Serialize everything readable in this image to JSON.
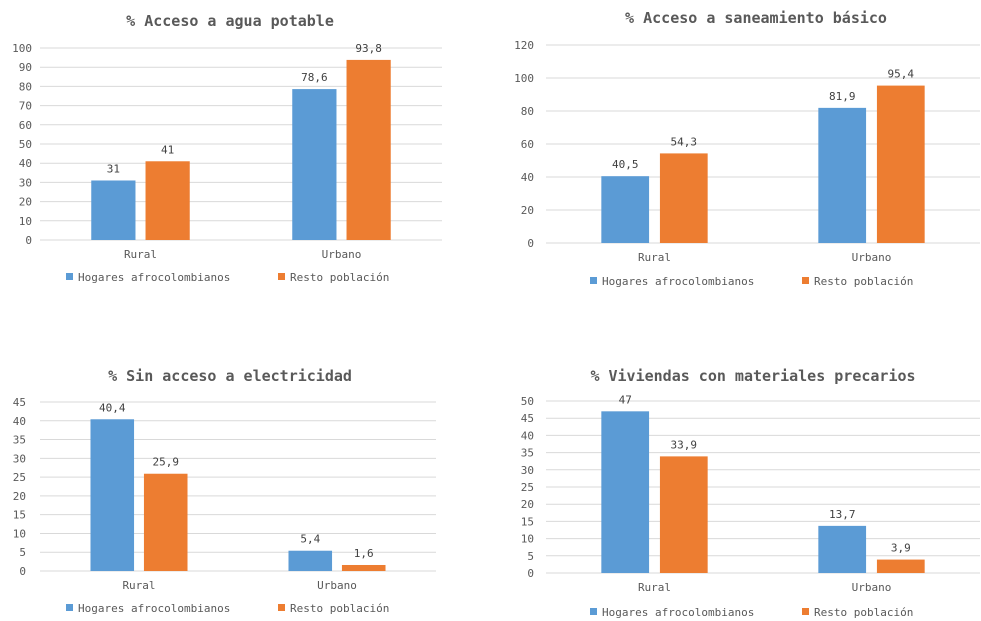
{
  "chart_data": [
    {
      "type": "bar",
      "title": "% Acceso a agua potable",
      "categories": [
        "Rural",
        "Urbano"
      ],
      "series": [
        {
          "name": "Hogares afrocolombianos",
          "color": "#5B9BD5",
          "values": [
            31,
            78.6
          ],
          "labels": [
            "31",
            "78,6"
          ]
        },
        {
          "name": "Resto población",
          "color": "#ED7D31",
          "values": [
            41,
            93.8
          ],
          "labels": [
            "41",
            "93,8"
          ]
        }
      ],
      "ylim": [
        0,
        100
      ],
      "yticks": [
        "0",
        "10",
        "20",
        "30",
        "40",
        "50",
        "60",
        "70",
        "80",
        "90",
        "100"
      ],
      "grid": true,
      "legend": "bottom"
    },
    {
      "type": "bar",
      "title": "% Acceso a saneamiento básico",
      "categories": [
        "Rural",
        "Urbano"
      ],
      "series": [
        {
          "name": "Hogares afrocolombianos",
          "color": "#5B9BD5",
          "values": [
            40.5,
            81.9
          ],
          "labels": [
            "40,5",
            "81,9"
          ]
        },
        {
          "name": "Resto población",
          "color": "#ED7D31",
          "values": [
            54.3,
            95.4
          ],
          "labels": [
            "54,3",
            "95,4"
          ]
        }
      ],
      "ylim": [
        0,
        120
      ],
      "yticks": [
        "0",
        "20",
        "40",
        "60",
        "80",
        "100",
        "120"
      ],
      "grid": true,
      "legend": "bottom"
    },
    {
      "type": "bar",
      "title": "%  Sin acceso a electricidad",
      "categories": [
        "Rural",
        "Urbano"
      ],
      "series": [
        {
          "name": "Hogares afrocolombianos",
          "color": "#5B9BD5",
          "values": [
            40.4,
            5.4
          ],
          "labels": [
            "40,4",
            "5,4"
          ]
        },
        {
          "name": "Resto población",
          "color": "#ED7D31",
          "values": [
            25.9,
            1.6
          ],
          "labels": [
            "25,9",
            "1,6"
          ]
        }
      ],
      "ylim": [
        0,
        45
      ],
      "yticks": [
        "0",
        "5",
        "10",
        "15",
        "20",
        "25",
        "30",
        "35",
        "40",
        "45"
      ],
      "grid": true,
      "legend": "bottom"
    },
    {
      "type": "bar",
      "title": "% Viviendas con materiales precarios",
      "categories": [
        "Rural",
        "Urbano"
      ],
      "series": [
        {
          "name": "Hogares afrocolombianos",
          "color": "#5B9BD5",
          "values": [
            47,
            13.7
          ],
          "labels": [
            "47",
            "13,7"
          ]
        },
        {
          "name": "Resto población",
          "color": "#ED7D31",
          "values": [
            33.9,
            3.9
          ],
          "labels": [
            "33,9",
            "3,9"
          ]
        }
      ],
      "ylim": [
        0,
        50
      ],
      "yticks": [
        "0",
        "5",
        "10",
        "15",
        "20",
        "25",
        "30",
        "35",
        "40",
        "45",
        "50"
      ],
      "grid": true,
      "legend": "bottom"
    }
  ]
}
